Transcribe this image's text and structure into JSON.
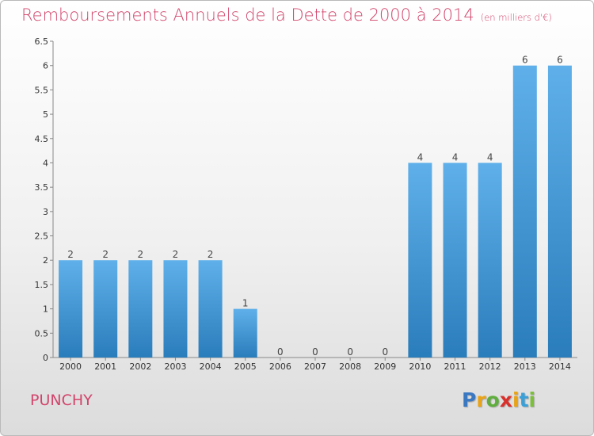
{
  "title": "Remboursements Annuels de la Dette de 2000 à 2014",
  "subtitle": "(en milliers d'€)",
  "place": "PUNCHY",
  "logo": {
    "letters": [
      "P",
      "r",
      "o",
      "x",
      "i",
      "t",
      "i"
    ],
    "colors": [
      "#3a78c2",
      "#e8a317",
      "#5fae3e",
      "#d9302b",
      "#e8a317",
      "#3aa0d8",
      "#7bbf3a"
    ]
  },
  "colors": {
    "title": "#d2446b",
    "bar_top": "#5fb0ea",
    "bar_bottom": "#2a7dbb"
  },
  "chart_data": {
    "type": "bar",
    "title": "Remboursements Annuels de la Dette de 2000 à 2014",
    "subtitle": "(en milliers d'€)",
    "categories": [
      "2000",
      "2001",
      "2002",
      "2003",
      "2004",
      "2005",
      "2006",
      "2007",
      "2008",
      "2009",
      "2010",
      "2011",
      "2012",
      "2013",
      "2014"
    ],
    "values": [
      2,
      2,
      2,
      2,
      2,
      1,
      0,
      0,
      0,
      0,
      4,
      4,
      4,
      6,
      6
    ],
    "data_labels": [
      "2",
      "2",
      "2",
      "2",
      "2",
      "1",
      "0",
      "0",
      "0",
      "0",
      "4",
      "4",
      "4",
      "6",
      "6"
    ],
    "ylim": [
      0,
      6.5
    ],
    "yticks": [
      "0",
      "0.5",
      "1",
      "1.5",
      "2",
      "2.5",
      "3",
      "3.5",
      "4",
      "4.5",
      "5",
      "5.5",
      "6",
      "6.5"
    ],
    "grid": false,
    "xlabel": "",
    "ylabel": ""
  }
}
